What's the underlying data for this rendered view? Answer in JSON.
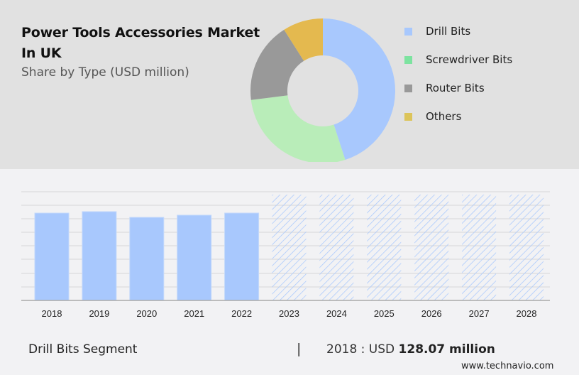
{
  "header": {
    "title": "Power Tools Accessories Market In UK",
    "subtitle": "Share by Type (USD million)"
  },
  "legend": [
    {
      "label": "Drill Bits",
      "color": "#a8c8fd"
    },
    {
      "label": "Screwdriver Bits",
      "color": "#7de3a0"
    },
    {
      "label": "Router Bits",
      "color": "#999999"
    },
    {
      "label": "Others",
      "color": "#dcc45a"
    }
  ],
  "footer": {
    "segment": "Drill Bits Segment",
    "separator": "|",
    "year_value_prefix": "2018 : USD ",
    "value": "128.07 million",
    "site": "www.technavio.com"
  },
  "chart_data": [
    {
      "type": "pie",
      "title": "Power Tools Accessories Market In UK",
      "subtitle": "Share by Type (USD million)",
      "donut": true,
      "categories": [
        "Drill Bits",
        "Screwdriver Bits",
        "Router Bits",
        "Others"
      ],
      "values": [
        45,
        28,
        18,
        9
      ],
      "colors": [
        "#a8c8fd",
        "#b9edb9",
        "#999999",
        "#e4b94f"
      ],
      "legend_position": "right"
    },
    {
      "type": "bar",
      "title": "Drill Bits Segment",
      "categories": [
        "2018",
        "2019",
        "2020",
        "2021",
        "2022",
        "2023",
        "2024",
        "2025",
        "2026",
        "2027",
        "2028"
      ],
      "values": [
        128.07,
        130.2,
        121.8,
        125.0,
        128.1,
        null,
        null,
        null,
        null,
        null,
        null
      ],
      "forecast_years": [
        "2023",
        "2024",
        "2025",
        "2026",
        "2027",
        "2028"
      ],
      "annotation": "2018 : USD 128.07 million",
      "xlabel": "",
      "ylabel": "",
      "grid": true,
      "color": "#a8c8fd"
    }
  ]
}
